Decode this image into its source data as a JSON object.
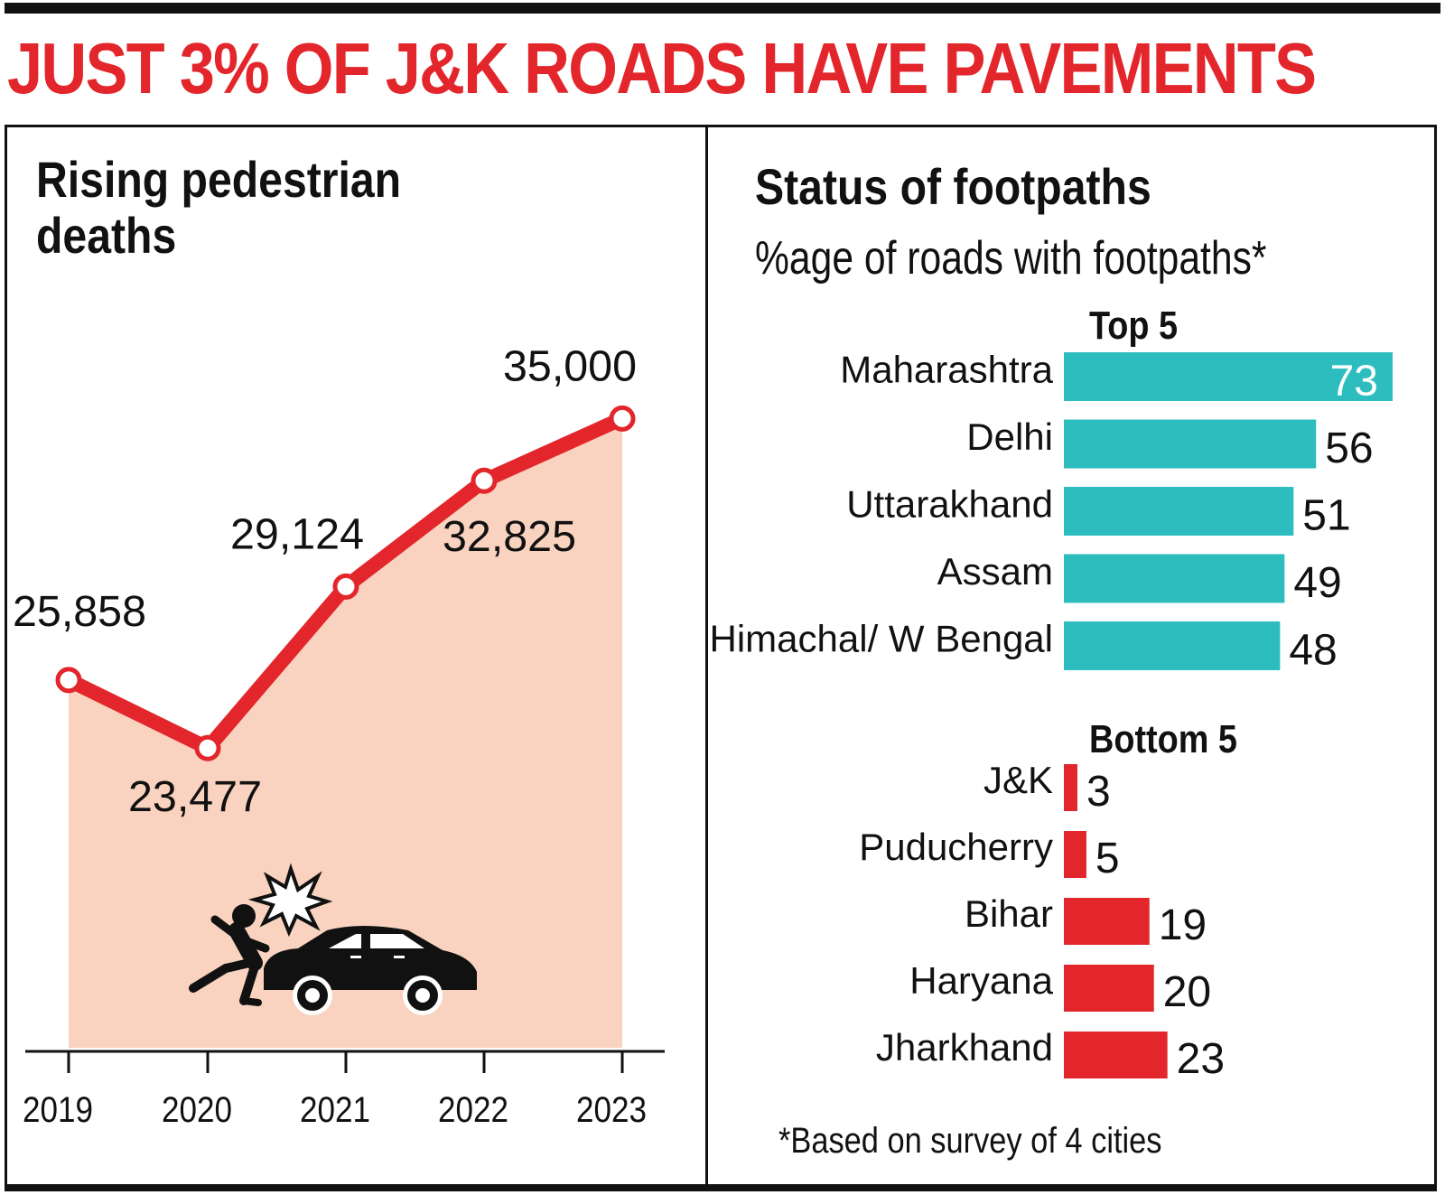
{
  "headline": "JUST 3% OF J&K ROADS HAVE PAVEMENTS",
  "left_panel": {
    "title_line1": "Rising pedestrian",
    "title_line2": "deaths"
  },
  "right_panel": {
    "title": "Status of footpaths",
    "subtitle": "%age of roads with footpaths*",
    "top_label": "Top 5",
    "bottom_label": "Bottom 5",
    "footnote": "*Based on survey of 4 cities"
  },
  "colors": {
    "headline": "#e3262b",
    "line": "#e3262b",
    "area_fill": "#f9d3bf",
    "top_bars": "#2ebdbf",
    "bottom_bars": "#e3262b"
  },
  "icons": [
    "pedestrian-icon",
    "impact-burst-icon",
    "car-icon"
  ],
  "chart_data": [
    {
      "type": "area",
      "title": "Rising pedestrian deaths",
      "x": [
        "2019",
        "2020",
        "2021",
        "2022",
        "2023"
      ],
      "series": [
        {
          "values": [
            25858,
            23477,
            29124,
            32825,
            35000
          ],
          "labels": [
            "25,858",
            "23,477",
            "29,124",
            "32,825",
            "35,000"
          ]
        }
      ],
      "ylim": [
        13000,
        37000
      ],
      "grid": false
    },
    {
      "type": "bar",
      "orientation": "horizontal",
      "title": "Top 5",
      "categories": [
        "Maharashtra",
        "Delhi",
        "Uttarakhand",
        "Assam",
        "Himachal/ W Bengal"
      ],
      "values": [
        73,
        56,
        51,
        49,
        48
      ],
      "xlim": [
        0,
        73
      ],
      "grid": false
    },
    {
      "type": "bar",
      "orientation": "horizontal",
      "title": "Bottom 5",
      "categories": [
        "J&K",
        "Puducherry",
        "Bihar",
        "Haryana",
        "Jharkhand"
      ],
      "values": [
        3,
        5,
        19,
        20,
        23
      ],
      "xlim": [
        0,
        73
      ],
      "grid": false
    }
  ]
}
